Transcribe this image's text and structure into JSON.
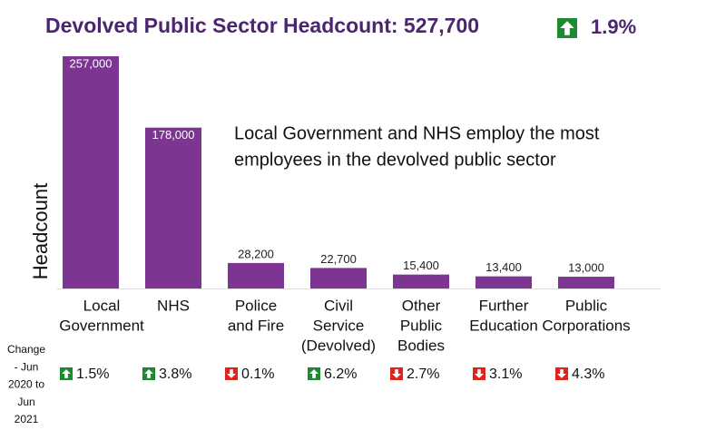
{
  "chart_data": {
    "type": "bar",
    "title": "Devolved Public Sector Headcount: 527,700",
    "total_change": "1.9%",
    "total_change_direction": "up",
    "y_label": "Headcount",
    "annotation": [
      "Local Government and NHS employ the most",
      "employees in the devolved public sector"
    ],
    "categories": [
      [
        "Local",
        "Government"
      ],
      [
        "NHS"
      ],
      [
        "Police",
        "and Fire"
      ],
      [
        "Civil",
        "Service",
        "(Devolved)"
      ],
      [
        "Other",
        "Public",
        "Bodies"
      ],
      [
        "Further",
        "Education"
      ],
      [
        "Public",
        "Corporations"
      ]
    ],
    "values": [
      257000,
      178000,
      28200,
      22700,
      15400,
      13400,
      13000
    ],
    "value_labels": [
      "257,000",
      "178,000",
      "28,200",
      "22,700",
      "15,400",
      "13,400",
      "13,000"
    ],
    "color": "#7d3592",
    "ylim": [
      0,
      260000
    ],
    "change_label": [
      "Change",
      "- Jun",
      "2020 to",
      "Jun",
      "2021"
    ],
    "changes": [
      "1.5%",
      "3.8%",
      "0.1%",
      "6.2%",
      "2.7%",
      "3.1%",
      "4.3%"
    ],
    "change_directions": [
      "up",
      "up",
      "down",
      "up",
      "down",
      "down",
      "down"
    ],
    "up_color": "#1d8a30",
    "down_color": "#e0221c"
  }
}
